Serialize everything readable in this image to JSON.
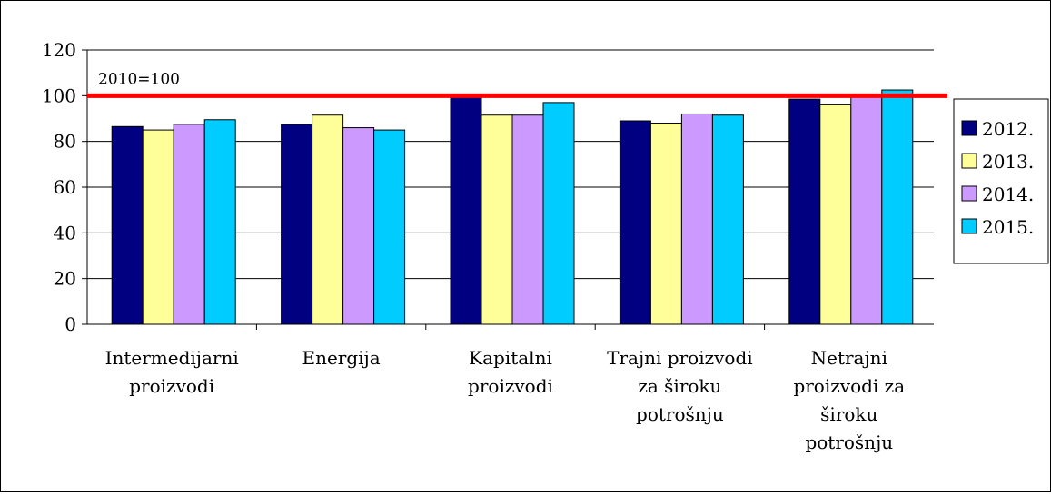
{
  "chart_data": {
    "type": "bar",
    "title": "",
    "xlabel": "",
    "ylabel": "",
    "ylim": [
      0,
      120
    ],
    "y_ticks": [
      0,
      20,
      40,
      60,
      80,
      100,
      120
    ],
    "grid": true,
    "legend_position": "right",
    "categories": [
      [
        "Intermedijarni",
        "proizvodi"
      ],
      [
        "Energija"
      ],
      [
        "Kapitalni",
        "proizvodi"
      ],
      [
        "Trajni proizvodi",
        "za široku",
        "potrošnju"
      ],
      [
        "Netrajni",
        "proizvodi za",
        "široku",
        "potrošnju"
      ]
    ],
    "series": [
      {
        "name": "2012.",
        "color": "#000080",
        "values": [
          86.5,
          87.5,
          100,
          89,
          98.5
        ]
      },
      {
        "name": "2013.",
        "color": "#FFFF99",
        "values": [
          85,
          91.5,
          91.5,
          88,
          96
        ]
      },
      {
        "name": "2014.",
        "color": "#CC99FF",
        "values": [
          87.5,
          86,
          91.5,
          92,
          99.5
        ]
      },
      {
        "name": "2015.",
        "color": "#00CCFF",
        "values": [
          89.5,
          85,
          97,
          91.5,
          102.5
        ]
      }
    ],
    "reference_line": {
      "value": 100,
      "label": "2010=100",
      "color": "#FF0000"
    }
  }
}
